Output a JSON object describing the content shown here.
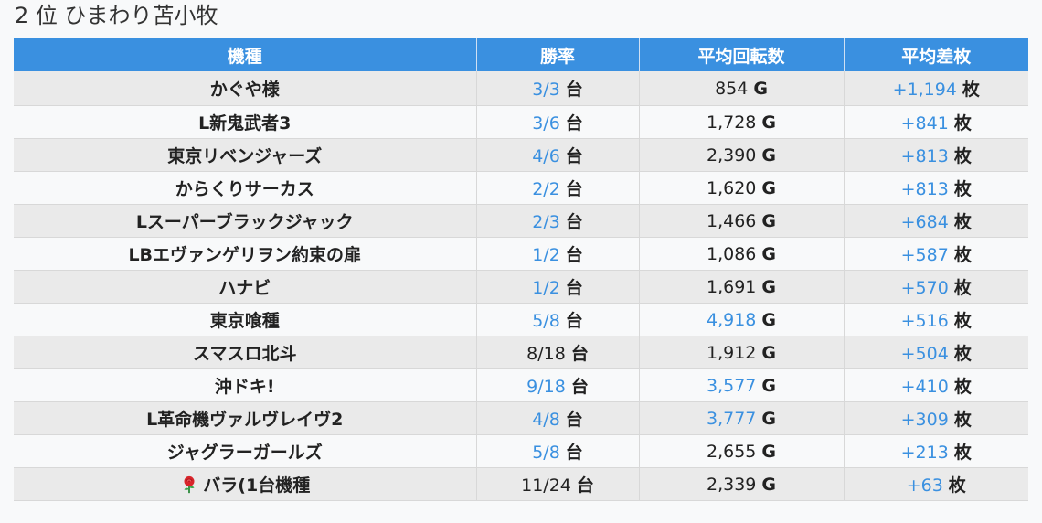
{
  "title": "2 位 ひまわり苫小牧",
  "table": {
    "headers": [
      "機種",
      "勝率",
      "平均回転数",
      "平均差枚"
    ],
    "rows": [
      {
        "machine": "かぐや様",
        "win": "3/3",
        "win_unit": "台",
        "win_hl": true,
        "spins": "854",
        "spins_unit": "G",
        "spins_hl": false,
        "diff": "+1,194",
        "diff_unit": "枚",
        "diff_hl": true
      },
      {
        "machine": "L新鬼武者3",
        "win": "3/6",
        "win_unit": "台",
        "win_hl": true,
        "spins": "1,728",
        "spins_unit": "G",
        "spins_hl": false,
        "diff": "+841",
        "diff_unit": "枚",
        "diff_hl": true
      },
      {
        "machine": "東京リベンジャーズ",
        "win": "4/6",
        "win_unit": "台",
        "win_hl": true,
        "spins": "2,390",
        "spins_unit": "G",
        "spins_hl": false,
        "diff": "+813",
        "diff_unit": "枚",
        "diff_hl": true
      },
      {
        "machine": "からくりサーカス",
        "win": "2/2",
        "win_unit": "台",
        "win_hl": true,
        "spins": "1,620",
        "spins_unit": "G",
        "spins_hl": false,
        "diff": "+813",
        "diff_unit": "枚",
        "diff_hl": true
      },
      {
        "machine": "Lスーパーブラックジャック",
        "win": "2/3",
        "win_unit": "台",
        "win_hl": true,
        "spins": "1,466",
        "spins_unit": "G",
        "spins_hl": false,
        "diff": "+684",
        "diff_unit": "枚",
        "diff_hl": true
      },
      {
        "machine": "LBエヴァンゲリヲン約束の扉",
        "win": "1/2",
        "win_unit": "台",
        "win_hl": true,
        "spins": "1,086",
        "spins_unit": "G",
        "spins_hl": false,
        "diff": "+587",
        "diff_unit": "枚",
        "diff_hl": true
      },
      {
        "machine": "ハナビ",
        "win": "1/2",
        "win_unit": "台",
        "win_hl": true,
        "spins": "1,691",
        "spins_unit": "G",
        "spins_hl": false,
        "diff": "+570",
        "diff_unit": "枚",
        "diff_hl": true
      },
      {
        "machine": "東京喰種",
        "win": "5/8",
        "win_unit": "台",
        "win_hl": true,
        "spins": "4,918",
        "spins_unit": "G",
        "spins_hl": true,
        "diff": "+516",
        "diff_unit": "枚",
        "diff_hl": true
      },
      {
        "machine": "スマスロ北斗",
        "win": "8/18",
        "win_unit": "台",
        "win_hl": false,
        "spins": "1,912",
        "spins_unit": "G",
        "spins_hl": false,
        "diff": "+504",
        "diff_unit": "枚",
        "diff_hl": true
      },
      {
        "machine": "沖ドキ!",
        "win": "9/18",
        "win_unit": "台",
        "win_hl": true,
        "spins": "3,577",
        "spins_unit": "G",
        "spins_hl": true,
        "diff": "+410",
        "diff_unit": "枚",
        "diff_hl": true
      },
      {
        "machine": "L革命機ヴァルヴレイヴ2",
        "win": "4/8",
        "win_unit": "台",
        "win_hl": true,
        "spins": "3,777",
        "spins_unit": "G",
        "spins_hl": true,
        "diff": "+309",
        "diff_unit": "枚",
        "diff_hl": true
      },
      {
        "machine": "ジャグラーガールズ",
        "win": "5/8",
        "win_unit": "台",
        "win_hl": true,
        "spins": "2,655",
        "spins_unit": "G",
        "spins_hl": false,
        "diff": "+213",
        "diff_unit": "枚",
        "diff_hl": true
      },
      {
        "machine": "バラ(1台機種",
        "machine_icon": "rose-icon",
        "win": "11/24",
        "win_unit": "台",
        "win_hl": false,
        "spins": "2,339",
        "spins_unit": "G",
        "spins_hl": false,
        "diff": "+63",
        "diff_unit": "枚",
        "diff_hl": true
      }
    ]
  },
  "colors": {
    "header_bg": "#3a90e0",
    "highlight": "#3a90e0",
    "row_alt": "#eaeaea",
    "page_bg": "#f8f9fa"
  }
}
